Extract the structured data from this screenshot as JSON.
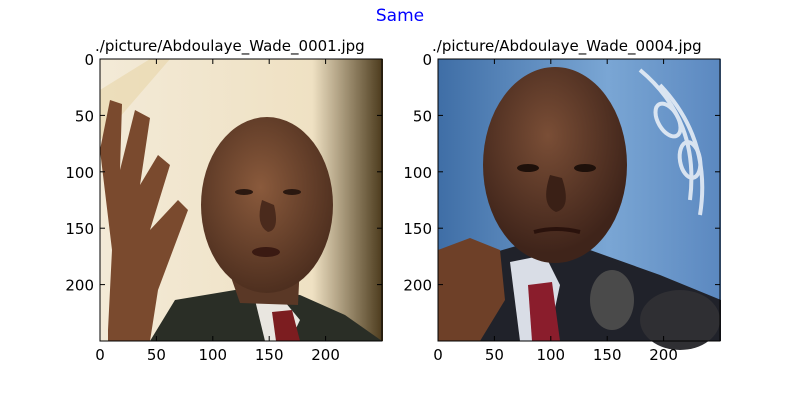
{
  "figure": {
    "suptitle": "Same",
    "suptitle_color": "#0000ff"
  },
  "chart_data": [
    {
      "type": "image",
      "title": "./picture/Abdoulaye_Wade_0001.jpg",
      "image_content": "photo-of-bald-man-raising-hand-dark-suit-red-tie",
      "xlim": [
        0,
        250
      ],
      "ylim": [
        250,
        0
      ],
      "x_ticks": [
        0,
        50,
        100,
        150,
        200
      ],
      "y_ticks": [
        0,
        50,
        100,
        150,
        200
      ]
    },
    {
      "type": "image",
      "title": "./picture/Abdoulaye_Wade_0004.jpg",
      "image_content": "photo-of-bald-man-raised-fist-dark-suit-red-tie-un-flag-background",
      "xlim": [
        0,
        250
      ],
      "ylim": [
        250,
        0
      ],
      "x_ticks": [
        0,
        50,
        100,
        150,
        200
      ],
      "y_ticks": [
        0,
        50,
        100,
        150,
        200
      ]
    }
  ]
}
